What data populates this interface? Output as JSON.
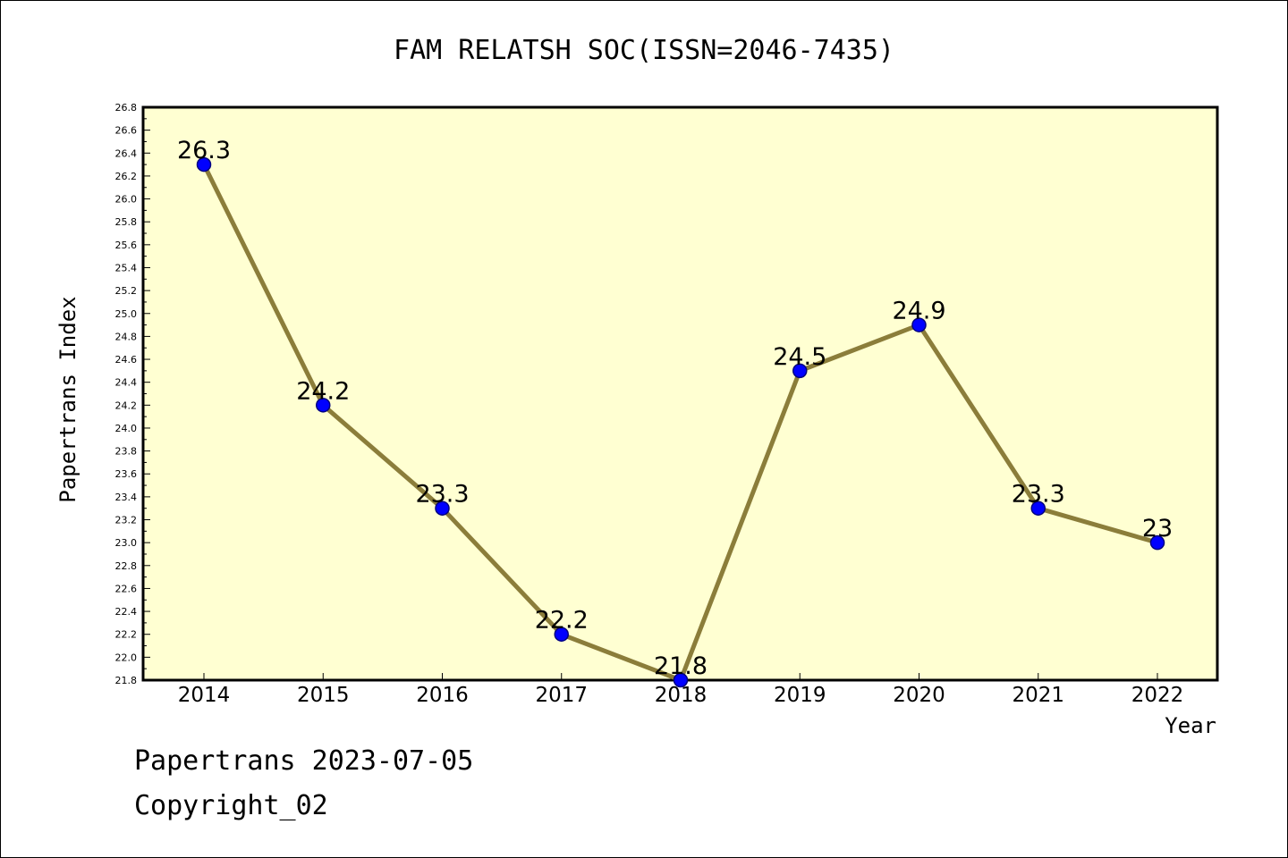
{
  "chart_data": {
    "type": "line",
    "title": "FAM RELATSH SOC(ISSN=2046-7435)",
    "xlabel": "Year",
    "ylabel": "Papertrans Index",
    "categories": [
      "2014",
      "2015",
      "2016",
      "2017",
      "2018",
      "2019",
      "2020",
      "2021",
      "2022"
    ],
    "series": [
      {
        "values": [
          26.3,
          24.2,
          23.3,
          22.2,
          21.8,
          24.5,
          24.9,
          23.3,
          23.0
        ],
        "labels": [
          "26.3",
          "24.2",
          "23.3",
          "22.2",
          "21.8",
          "24.5",
          "24.9",
          "23.3",
          "23"
        ]
      }
    ],
    "ylim": [
      21.8,
      26.8
    ],
    "ytick_labels": [
      "21.8",
      "22.0",
      "22.2",
      "22.4",
      "22.6",
      "22.8",
      "23.0",
      "23.2",
      "23.4",
      "23.6",
      "23.8",
      "24.0",
      "24.2",
      "24.4",
      "24.6",
      "24.8",
      "25.0",
      "25.2",
      "25.4",
      "25.6",
      "25.8",
      "26.0",
      "26.2",
      "26.4",
      "26.6",
      "26.8"
    ],
    "grid": false,
    "legend": "none",
    "colors": {
      "plot_background": "#ffffd2",
      "line": "#8b7d3a",
      "marker_fill": "#0000ff",
      "marker_edge": "#000080"
    }
  },
  "footer": {
    "date_line": "Papertrans 2023-07-05",
    "copyright_line": "Copyright_02"
  }
}
